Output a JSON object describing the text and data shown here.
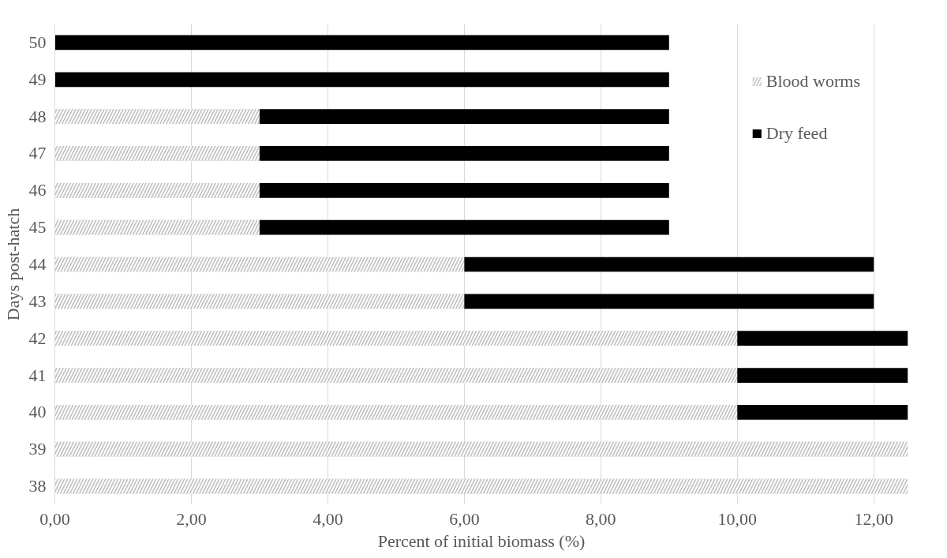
{
  "chart_data": {
    "type": "bar",
    "orientation": "horizontal",
    "stacked": true,
    "categories": [
      "50",
      "49",
      "48",
      "47",
      "46",
      "45",
      "44",
      "43",
      "42",
      "41",
      "40",
      "39",
      "38"
    ],
    "series": [
      {
        "name": "Blood worms",
        "color": "#bfbfbf",
        "values": [
          0,
          0,
          3,
          3,
          3,
          3,
          6,
          6,
          10,
          10,
          10,
          12.5,
          12.5
        ]
      },
      {
        "name": "Dry feed",
        "color": "#000000",
        "values": [
          9,
          9,
          6,
          6,
          6,
          6,
          6,
          6,
          2.5,
          2.5,
          2.5,
          0,
          0
        ]
      }
    ],
    "xlabel": "Percent of initial biomass (%)",
    "ylabel": "Days post-hatch",
    "xlim": [
      0,
      12.5
    ],
    "xticks": [
      {
        "value": 0,
        "label": "0,00"
      },
      {
        "value": 2,
        "label": "2,00"
      },
      {
        "value": 4,
        "label": "4,00"
      },
      {
        "value": 6,
        "label": "6,00"
      },
      {
        "value": 8,
        "label": "8,00"
      },
      {
        "value": 10,
        "label": "10,00"
      },
      {
        "value": 12,
        "label": "12,00"
      }
    ],
    "grid": "x",
    "legend": "top right"
  }
}
